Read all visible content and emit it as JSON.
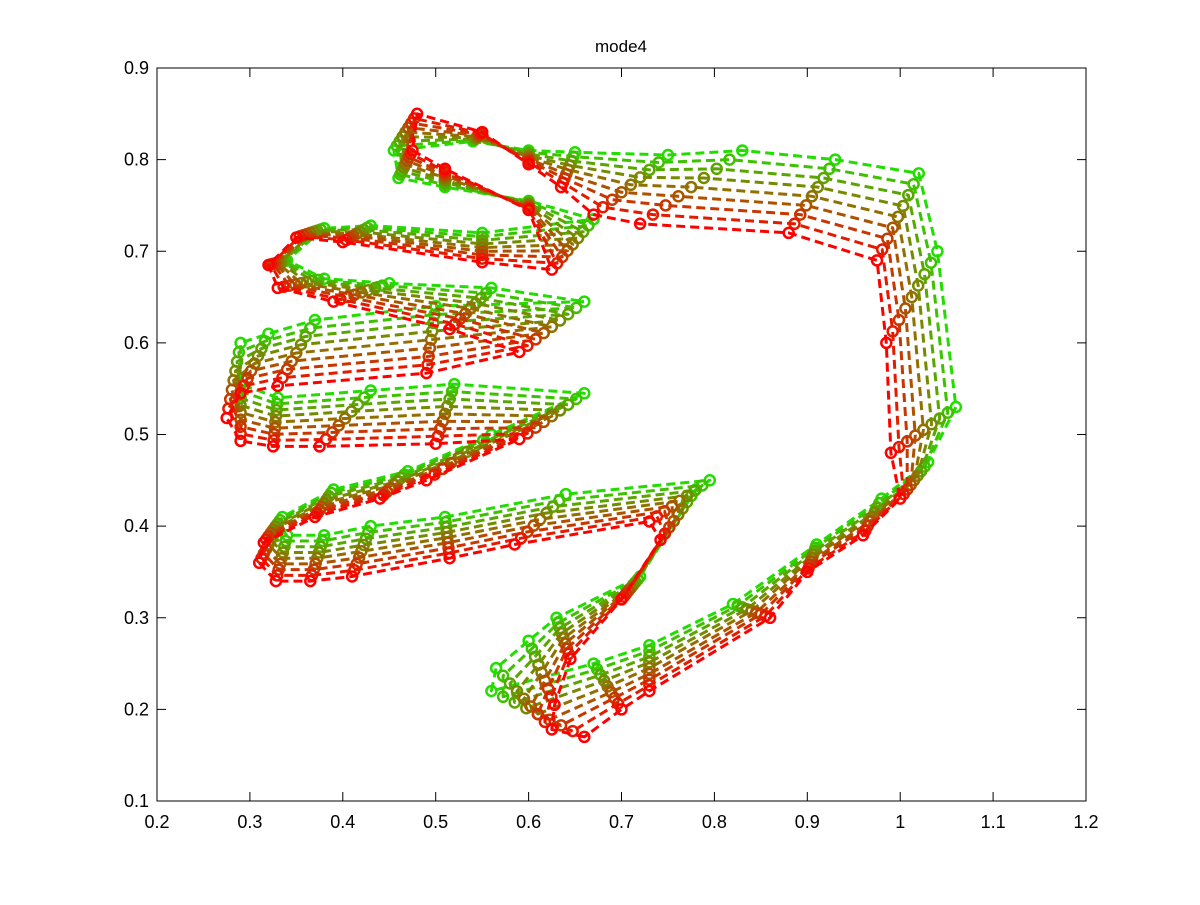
{
  "chart_data": {
    "type": "line",
    "title": "mode4",
    "xlabel": "",
    "ylabel": "",
    "xlim": [
      0.2,
      1.2
    ],
    "ylim": [
      0.1,
      0.9
    ],
    "xticks": [
      "0.2",
      "0.3",
      "0.4",
      "0.5",
      "0.6",
      "0.7",
      "0.8",
      "0.9",
      "1",
      "1.1",
      "1.2"
    ],
    "yticks": [
      "0.1",
      "0.2",
      "0.3",
      "0.4",
      "0.5",
      "0.6",
      "0.7",
      "0.8",
      "0.9"
    ],
    "grid": false,
    "legend": "none",
    "line_style": "dashed",
    "marker": "circle",
    "color_start": "#ff0000",
    "color_end": "#22dd00",
    "series_count": 9,
    "shape_red": [
      [
        0.66,
        0.17
      ],
      [
        0.625,
        0.178
      ],
      [
        0.628,
        0.205
      ],
      [
        0.645,
        0.255
      ],
      [
        0.7,
        0.32
      ],
      [
        0.742,
        0.385
      ],
      [
        0.73,
        0.405
      ],
      [
        0.585,
        0.38
      ],
      [
        0.515,
        0.365
      ],
      [
        0.41,
        0.345
      ],
      [
        0.365,
        0.34
      ],
      [
        0.328,
        0.34
      ],
      [
        0.31,
        0.36
      ],
      [
        0.315,
        0.382
      ],
      [
        0.37,
        0.41
      ],
      [
        0.44,
        0.43
      ],
      [
        0.49,
        0.45
      ],
      [
        0.59,
        0.495
      ],
      [
        0.5,
        0.49
      ],
      [
        0.375,
        0.487
      ],
      [
        0.325,
        0.487
      ],
      [
        0.29,
        0.493
      ],
      [
        0.275,
        0.518
      ],
      [
        0.29,
        0.545
      ],
      [
        0.33,
        0.553
      ],
      [
        0.49,
        0.567
      ],
      [
        0.59,
        0.59
      ],
      [
        0.515,
        0.615
      ],
      [
        0.39,
        0.645
      ],
      [
        0.33,
        0.66
      ],
      [
        0.32,
        0.685
      ],
      [
        0.35,
        0.715
      ],
      [
        0.4,
        0.71
      ],
      [
        0.55,
        0.688
      ],
      [
        0.625,
        0.68
      ],
      [
        0.6,
        0.745
      ],
      [
        0.51,
        0.79
      ],
      [
        0.475,
        0.81
      ],
      [
        0.48,
        0.85
      ],
      [
        0.55,
        0.83
      ],
      [
        0.6,
        0.795
      ],
      [
        0.635,
        0.77
      ],
      [
        0.67,
        0.74
      ],
      [
        0.72,
        0.73
      ],
      [
        0.88,
        0.72
      ],
      [
        0.975,
        0.69
      ],
      [
        0.985,
        0.6
      ],
      [
        0.99,
        0.48
      ],
      [
        1.0,
        0.43
      ],
      [
        0.96,
        0.39
      ],
      [
        0.9,
        0.35
      ],
      [
        0.86,
        0.3
      ],
      [
        0.73,
        0.22
      ],
      [
        0.7,
        0.2
      ]
    ],
    "shape_green": [
      [
        0.56,
        0.22
      ],
      [
        0.565,
        0.245
      ],
      [
        0.6,
        0.275
      ],
      [
        0.63,
        0.3
      ],
      [
        0.72,
        0.345
      ],
      [
        0.78,
        0.44
      ],
      [
        0.795,
        0.45
      ],
      [
        0.64,
        0.435
      ],
      [
        0.51,
        0.41
      ],
      [
        0.43,
        0.4
      ],
      [
        0.38,
        0.39
      ],
      [
        0.34,
        0.39
      ],
      [
        0.33,
        0.4
      ],
      [
        0.335,
        0.41
      ],
      [
        0.39,
        0.44
      ],
      [
        0.47,
        0.46
      ],
      [
        0.56,
        0.5
      ],
      [
        0.66,
        0.545
      ],
      [
        0.52,
        0.555
      ],
      [
        0.43,
        0.548
      ],
      [
        0.33,
        0.54
      ],
      [
        0.29,
        0.555
      ],
      [
        0.29,
        0.6
      ],
      [
        0.32,
        0.61
      ],
      [
        0.37,
        0.625
      ],
      [
        0.5,
        0.64
      ],
      [
        0.66,
        0.645
      ],
      [
        0.56,
        0.66
      ],
      [
        0.45,
        0.665
      ],
      [
        0.38,
        0.67
      ],
      [
        0.34,
        0.69
      ],
      [
        0.38,
        0.725
      ],
      [
        0.43,
        0.728
      ],
      [
        0.55,
        0.72
      ],
      [
        0.67,
        0.735
      ],
      [
        0.6,
        0.755
      ],
      [
        0.51,
        0.77
      ],
      [
        0.46,
        0.78
      ],
      [
        0.455,
        0.81
      ],
      [
        0.54,
        0.82
      ],
      [
        0.6,
        0.81
      ],
      [
        0.65,
        0.808
      ],
      [
        0.75,
        0.805
      ],
      [
        0.83,
        0.81
      ],
      [
        0.93,
        0.8
      ],
      [
        1.02,
        0.785
      ],
      [
        1.04,
        0.7
      ],
      [
        1.06,
        0.53
      ],
      [
        1.03,
        0.47
      ],
      [
        0.98,
        0.43
      ],
      [
        0.91,
        0.38
      ],
      [
        0.82,
        0.315
      ],
      [
        0.73,
        0.27
      ],
      [
        0.67,
        0.25
      ]
    ]
  }
}
